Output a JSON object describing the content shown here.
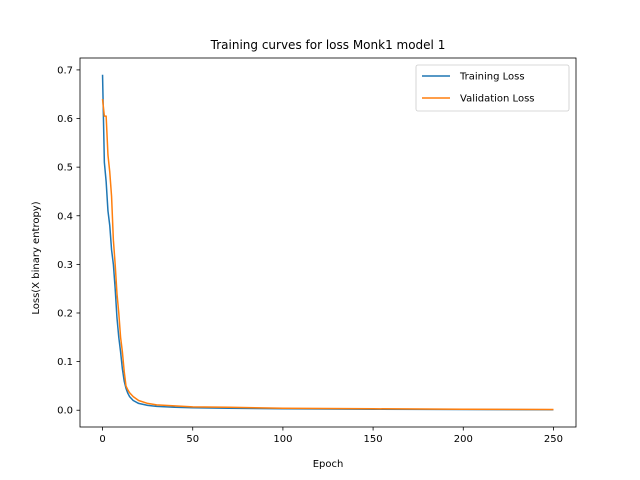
{
  "chart_data": {
    "type": "line",
    "title": "Training curves for loss Monk1 model 1",
    "xlabel": "Epoch",
    "ylabel": "Loss(X binary entropy)",
    "xlim": [
      -12.5,
      262.5
    ],
    "ylim": [
      -0.0345,
      0.7245
    ],
    "xticks": [
      0,
      50,
      100,
      150,
      200,
      250
    ],
    "yticks": [
      0.0,
      0.1,
      0.2,
      0.3,
      0.4,
      0.5,
      0.6,
      0.7
    ],
    "ytick_labels": [
      "0.0",
      "0.1",
      "0.2",
      "0.3",
      "0.4",
      "0.5",
      "0.6",
      "0.7"
    ],
    "grid": false,
    "legend": "upper right",
    "series": [
      {
        "name": "Training Loss",
        "color": "#1f77b4",
        "points": [
          [
            0,
            0.69
          ],
          [
            1,
            0.51
          ],
          [
            2,
            0.47
          ],
          [
            3,
            0.41
          ],
          [
            4,
            0.38
          ],
          [
            5,
            0.33
          ],
          [
            6,
            0.3
          ],
          [
            7,
            0.25
          ],
          [
            8,
            0.19
          ],
          [
            9,
            0.15
          ],
          [
            10,
            0.12
          ],
          [
            11,
            0.085
          ],
          [
            12,
            0.06
          ],
          [
            13,
            0.045
          ],
          [
            14,
            0.035
          ],
          [
            15,
            0.028
          ],
          [
            17,
            0.02
          ],
          [
            20,
            0.014
          ],
          [
            25,
            0.01
          ],
          [
            30,
            0.008
          ],
          [
            40,
            0.006
          ],
          [
            50,
            0.005
          ],
          [
            70,
            0.004
          ],
          [
            100,
            0.003
          ],
          [
            150,
            0.002
          ],
          [
            200,
            0.0015
          ],
          [
            250,
            0.001
          ]
        ]
      },
      {
        "name": "Validation Loss",
        "color": "#ff7f0e",
        "points": [
          [
            0,
            0.64
          ],
          [
            1,
            0.605
          ],
          [
            2,
            0.605
          ],
          [
            3,
            0.525
          ],
          [
            4,
            0.49
          ],
          [
            5,
            0.44
          ],
          [
            6,
            0.35
          ],
          [
            7,
            0.3
          ],
          [
            8,
            0.24
          ],
          [
            9,
            0.2
          ],
          [
            10,
            0.15
          ],
          [
            11,
            0.12
          ],
          [
            12,
            0.08
          ],
          [
            13,
            0.05
          ],
          [
            14,
            0.042
          ],
          [
            15,
            0.036
          ],
          [
            17,
            0.028
          ],
          [
            20,
            0.02
          ],
          [
            25,
            0.014
          ],
          [
            30,
            0.011
          ],
          [
            40,
            0.009
          ],
          [
            50,
            0.007
          ],
          [
            70,
            0.006
          ],
          [
            100,
            0.004
          ],
          [
            150,
            0.003
          ],
          [
            200,
            0.002
          ],
          [
            250,
            0.0015
          ]
        ]
      }
    ]
  }
}
